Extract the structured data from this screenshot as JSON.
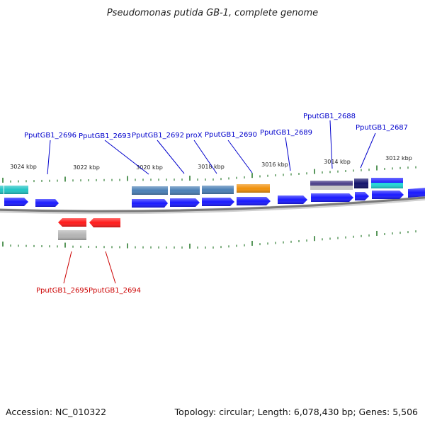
{
  "title": "Pseudomonas putida GB-1, complete genome",
  "footer": {
    "accession": "Accession: NC_010322",
    "topology": "Topology: circular; Length: 6,078,430 bp; Genes: 5,506"
  },
  "colors": {
    "background": "#ffffff",
    "forward_label": "#0000cc",
    "reverse_label": "#cc0000",
    "tick": "#2e7d32",
    "backbone": "#808080",
    "cds_blue": "#1a1aff",
    "cds_red": "#ff1a1a",
    "steel": "#4a7fb5",
    "teal": "#20c4c4",
    "orange": "#f0900a",
    "navy": "#11116b",
    "gray": "#b4b4b4"
  },
  "scale_labels": [
    "3024 kbp",
    "3022 kbp",
    "3020 kbp",
    "3018 kbp",
    "3016 kbp",
    "3014 kbp",
    "3012 kbp"
  ],
  "forward_genes": [
    "PputGB1_2696",
    "PputGB1_2693",
    "PputGB1_2692",
    "proX",
    "PputGB1_2690",
    "PputGB1_2689",
    "PputGB1_2688",
    "PputGB1_2687"
  ],
  "reverse_genes": [
    "PputGB1_2695",
    "PputGB1_2694"
  ]
}
